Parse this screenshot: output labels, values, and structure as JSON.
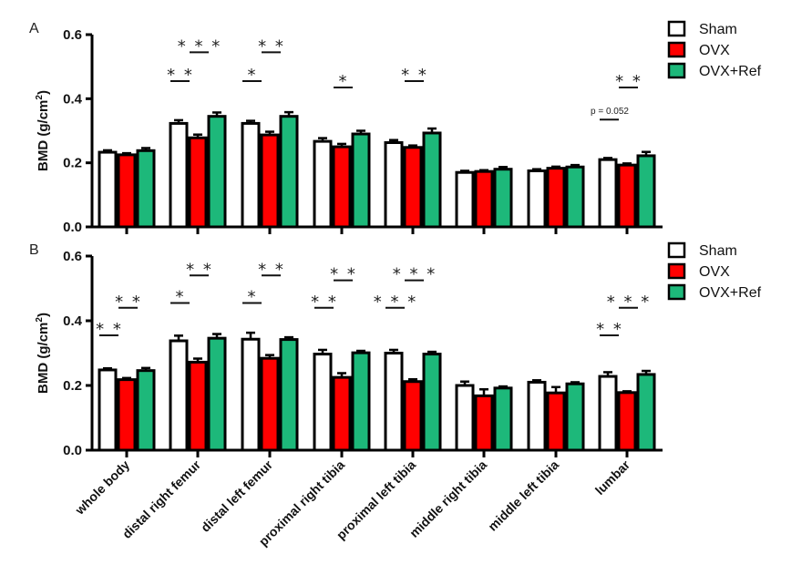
{
  "chart_data": [
    {
      "type": "bar",
      "panel_label": "A",
      "ylabel": "BMD (g/cm²)",
      "ylabel_base": "BMD (g/cm",
      "ylabel_sup": "2",
      "ylabel_end": ")",
      "ylim": [
        0,
        0.6
      ],
      "yticks": [
        "0.0",
        "0.2",
        "0.4",
        "0.6"
      ],
      "categories": [
        "whole body",
        "distal right femur",
        "distal left femur",
        "proximal right tibia",
        "proximal left tibia",
        "middle right tibia",
        "middle left tibia",
        "lumbar"
      ],
      "series": [
        {
          "name": "Sham",
          "color": "#ffffff",
          "values": [
            0.233,
            0.323,
            0.323,
            0.267,
            0.263,
            0.17,
            0.175,
            0.21
          ],
          "errors": [
            0.006,
            0.01,
            0.008,
            0.01,
            0.008,
            0.005,
            0.005,
            0.005
          ]
        },
        {
          "name": "OVX",
          "color": "#ff0000",
          "values": [
            0.225,
            0.278,
            0.287,
            0.25,
            0.248,
            0.173,
            0.183,
            0.193
          ],
          "errors": [
            0.005,
            0.01,
            0.01,
            0.009,
            0.006,
            0.004,
            0.005,
            0.005
          ]
        },
        {
          "name": "OVX+Ref",
          "color": "#1db87a",
          "values": [
            0.238,
            0.345,
            0.345,
            0.29,
            0.293,
            0.18,
            0.187,
            0.222
          ],
          "errors": [
            0.008,
            0.012,
            0.013,
            0.01,
            0.014,
            0.007,
            0.006,
            0.012
          ]
        }
      ],
      "annotations": [
        {
          "group": 1,
          "pair": "Sham-OVX",
          "text": "**",
          "level": 0.455
        },
        {
          "group": 1,
          "pair": "OVX-OVX+Ref",
          "text": "***",
          "level": 0.545
        },
        {
          "group": 2,
          "pair": "Sham-OVX",
          "text": "*",
          "level": 0.455
        },
        {
          "group": 2,
          "pair": "OVX-OVX+Ref",
          "text": "**",
          "level": 0.545
        },
        {
          "group": 3,
          "pair": "OVX-OVX+Ref",
          "text": "*",
          "level": 0.435
        },
        {
          "group": 4,
          "pair": "OVX-OVX+Ref",
          "text": "**",
          "level": 0.455
        },
        {
          "group": 7,
          "pair": "Sham-OVX",
          "text": "p = 0.052",
          "level": 0.335
        },
        {
          "group": 7,
          "pair": "OVX-OVX+Ref",
          "text": "**",
          "level": 0.435
        }
      ]
    },
    {
      "type": "bar",
      "panel_label": "B",
      "ylabel": "BMD (g/cm²)",
      "ylabel_base": "BMD (g/cm",
      "ylabel_sup": "2",
      "ylabel_end": ")",
      "ylim": [
        0,
        0.6
      ],
      "yticks": [
        "0.0",
        "0.2",
        "0.4",
        "0.6"
      ],
      "categories": [
        "whole body",
        "distal right femur",
        "distal left femur",
        "proximal right tibia",
        "proximal left tibia",
        "middle right tibia",
        "middle left tibia",
        "lumbar"
      ],
      "series": [
        {
          "name": "Sham",
          "color": "#ffffff",
          "values": [
            0.248,
            0.338,
            0.343,
            0.297,
            0.3,
            0.2,
            0.21,
            0.228
          ],
          "errors": [
            0.005,
            0.016,
            0.02,
            0.013,
            0.01,
            0.012,
            0.006,
            0.013
          ]
        },
        {
          "name": "OVX",
          "color": "#ff0000",
          "values": [
            0.218,
            0.272,
            0.284,
            0.225,
            0.212,
            0.168,
            0.177,
            0.178
          ],
          "errors": [
            0.005,
            0.011,
            0.01,
            0.013,
            0.007,
            0.02,
            0.018,
            0.004
          ]
        },
        {
          "name": "OVX+Ref",
          "color": "#1db87a",
          "values": [
            0.246,
            0.346,
            0.342,
            0.301,
            0.297,
            0.192,
            0.205,
            0.234
          ],
          "errors": [
            0.008,
            0.013,
            0.007,
            0.006,
            0.007,
            0.005,
            0.005,
            0.011
          ]
        }
      ],
      "annotations": [
        {
          "group": 0,
          "pair": "Sham-OVX",
          "text": "**",
          "level": 0.355
        },
        {
          "group": 0,
          "pair": "OVX-OVX+Ref",
          "text": "**",
          "level": 0.44
        },
        {
          "group": 1,
          "pair": "Sham-OVX",
          "text": "*",
          "level": 0.455
        },
        {
          "group": 1,
          "pair": "OVX-OVX+Ref",
          "text": "**",
          "level": 0.54
        },
        {
          "group": 2,
          "pair": "Sham-OVX",
          "text": "*",
          "level": 0.455
        },
        {
          "group": 2,
          "pair": "OVX-OVX+Ref",
          "text": "**",
          "level": 0.54
        },
        {
          "group": 3,
          "pair": "Sham-OVX",
          "text": "**",
          "level": 0.44
        },
        {
          "group": 3,
          "pair": "OVX-OVX+Ref",
          "text": "**",
          "level": 0.525
        },
        {
          "group": 4,
          "pair": "Sham-OVX",
          "text": "***",
          "level": 0.44
        },
        {
          "group": 4,
          "pair": "OVX-OVX+Ref",
          "text": "***",
          "level": 0.525
        },
        {
          "group": 7,
          "pair": "Sham-OVX",
          "text": "**",
          "level": 0.355
        },
        {
          "group": 7,
          "pair": "OVX-OVX+Ref",
          "text": "***",
          "level": 0.44
        }
      ]
    }
  ],
  "legend": {
    "placement": "top-right",
    "items": [
      {
        "label": "Sham",
        "color": "#ffffff"
      },
      {
        "label": "OVX",
        "color": "#ff0000"
      },
      {
        "label": "OVX+Ref",
        "color": "#1db87a"
      }
    ]
  }
}
